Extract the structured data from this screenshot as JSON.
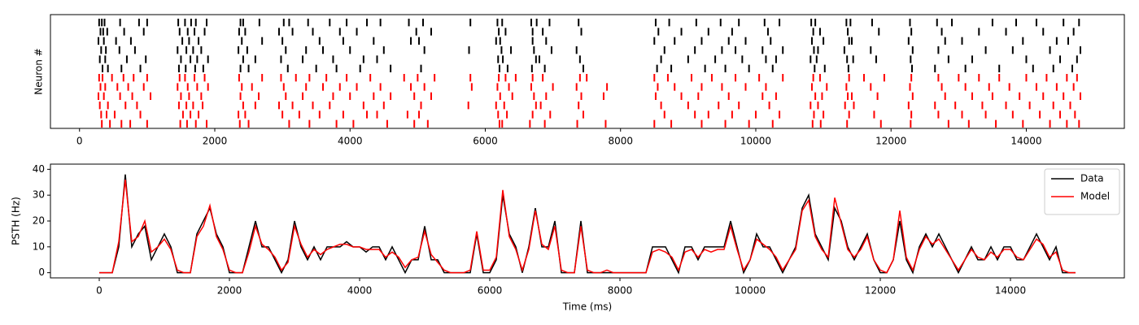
{
  "chart_data": [
    {
      "type": "raster",
      "ylabel": "Neuron #",
      "xlim": [
        -430,
        15450
      ],
      "xticks": [
        0,
        2000,
        4000,
        6000,
        8000,
        10000,
        12000,
        14000
      ],
      "series": [
        {
          "color": "black",
          "neurons": [
            [
              290,
              330,
              370,
              600,
              880,
              1000,
              1460,
              1560,
              1650,
              1720,
              1880,
              2380,
              2420,
              2660,
              3020,
              3100,
              3380,
              3700,
              3950,
              4250,
              4450,
              4870,
              5080,
              5780,
              6180,
              6250,
              6680,
              6760,
              6950,
              7380,
              8520,
              8720,
              9120,
              9480,
              9750,
              10130,
              10350,
              10820,
              10880,
              11340,
              11400,
              11720,
              12280,
              12680,
              12900,
              13500,
              13850,
              14150,
              14550,
              14780
            ],
            [
              310,
              350,
              410,
              660,
              950,
              1480,
              1600,
              1700,
              1850,
              2360,
              2450,
              2950,
              3150,
              3450,
              3850,
              4100,
              4980,
              5200,
              6200,
              6300,
              6700,
              6850,
              7420,
              8560,
              8900,
              9300,
              9650,
              10180,
              10850,
              10950,
              11360,
              11820,
              12300,
              12750,
              13300,
              13700,
              14250,
              14700
            ],
            [
              280,
              360,
              540,
              760,
              1520,
              1620,
              1760,
              2400,
              2700,
              3000,
              3550,
              3900,
              4350,
              4900,
              5020,
              6160,
              6220,
              6700,
              6900,
              8500,
              8800,
              9200,
              9600,
              9850,
              10220,
              10830,
              11000,
              11380,
              11420,
              12260,
              12800,
              13050,
              13950,
              14450,
              14620
            ],
            [
              320,
              390,
              590,
              820,
              1450,
              1580,
              1680,
              1800,
              2350,
              2480,
              3050,
              3350,
              3600,
              4000,
              4500,
              5100,
              5760,
              6240,
              6380,
              6720,
              6980,
              7350,
              8650,
              9100,
              9500,
              9700,
              10100,
              10400,
              10860,
              10920,
              11310,
              11700,
              12320,
              12700,
              13400,
              13800,
              14350,
              14800
            ],
            [
              300,
              380,
              700,
              980,
              1500,
              1640,
              1740,
              1900,
              2420,
              2600,
              2980,
              3300,
              3750,
              4200,
              4400,
              6190,
              6260,
              6750,
              6800,
              7400,
              8600,
              9000,
              9400,
              9800,
              10150,
              10300,
              10810,
              10900,
              11350,
              11440,
              11780,
              12290,
              12850,
              13200,
              14000,
              14500,
              14750
            ],
            [
              340,
              420,
              620,
              900,
              1470,
              1570,
              1710,
              1830,
              2380,
              2500,
              3080,
              3500,
              3800,
              4150,
              4600,
              5050,
              6210,
              6330,
              6690,
              6880,
              7450,
              8540,
              8750,
              9250,
              9550,
              9900,
              10250,
              10870,
              11020,
              11370,
              12310,
              12650,
              13100,
              13600,
              14100,
              14400,
              14680
            ]
          ]
        },
        {
          "color": "red",
          "neurons": [
            [
              290,
              340,
              480,
              650,
              800,
              1000,
              1480,
              1560,
              1700,
              1850,
              2360,
              2700,
              2980,
              3200,
              3400,
              3650,
              3950,
              4300,
              4800,
              5000,
              5250,
              5780,
              6200,
              6300,
              6450,
              6700,
              6850,
              7400,
              7500,
              8500,
              8700,
              9050,
              9350,
              9700,
              10050,
              10400,
              10850,
              10950,
              11380,
              11600,
              11900,
              12300,
              12700,
              13000,
              13300,
              13600,
              14000,
              14300,
              14600,
              14750
            ],
            [
              310,
              380,
              560,
              720,
              950,
              1450,
              1600,
              1740,
              1900,
              2400,
              2550,
              3020,
              3350,
              3600,
              3850,
              4100,
              4450,
              4900,
              5100,
              5800,
              6180,
              6350,
              6680,
              7000,
              7350,
              7800,
              8550,
              8800,
              9200,
              9500,
              9850,
              10150,
              10830,
              11050,
              11340,
              11700,
              12280,
              12750,
              13100,
              13450,
              13750,
              14150,
              14450,
              14700
            ],
            [
              280,
              360,
              600,
              780,
              1050,
              1500,
              1620,
              1800,
              2380,
              2650,
              3050,
              3300,
              3750,
              4000,
              4350,
              4600,
              4950,
              5200,
              6220,
              6400,
              6720,
              6900,
              7420,
              7750,
              8520,
              8900,
              9150,
              9600,
              10100,
              10300,
              10880,
              10980,
              11360,
              11420,
              11800,
              12320,
              12800,
              13200,
              13500,
              13900,
              14250,
              14550,
              14800
            ],
            [
              300,
              420,
              680,
              850,
              1470,
              1580,
              1680,
              1820,
              2420,
              2600,
              2950,
              3150,
              3450,
              3700,
              4200,
              4500,
              5050,
              5750,
              6160,
              6280,
              6750,
              6820,
              7380,
              8600,
              9000,
              9450,
              9750,
              10200,
              10810,
              10920,
              11320,
              11450,
              12260,
              12650,
              12950,
              13350,
              13700,
              14050,
              14400,
              14650
            ],
            [
              320,
              400,
              520,
              900,
              1530,
              1640,
              1760,
              2350,
              2450,
              3000,
              3250,
              3550,
              3900,
              4250,
              4400,
              4850,
              5020,
              6190,
              6320,
              6700,
              6960,
              7450,
              8650,
              9100,
              9300,
              9650,
              10000,
              10350,
              10860,
              11000,
              11380,
              11750,
              12300,
              12700,
              13050,
              13400,
              13800,
              14200,
              14500,
              14720
            ],
            [
              330,
              450,
              620,
              750,
              1000,
              1490,
              1590,
              1720,
              1880,
              2370,
              2500,
              3100,
              3400,
              3800,
              4050,
              4550,
              4950,
              5150,
              6210,
              6250,
              6660,
              6880,
              7360,
              7780,
              8500,
              8750,
              9200,
              9550,
              9900,
              10250,
              10840,
              10960,
              11350,
              11850,
              12290,
              12850,
              13150,
              13550,
              13950,
              14350,
              14600,
              14780
            ]
          ]
        }
      ]
    },
    {
      "type": "line",
      "xlabel": "Time (ms)",
      "ylabel": "PSTH (Hz)",
      "xlim": [
        -750,
        15750
      ],
      "xticks": [
        0,
        2000,
        4000,
        6000,
        8000,
        10000,
        12000,
        14000
      ],
      "ylim": [
        -2,
        42
      ],
      "yticks": [
        0,
        10,
        20,
        30,
        40
      ],
      "legend": "upper right",
      "x": [
        0,
        100,
        200,
        300,
        400,
        500,
        600,
        700,
        800,
        900,
        1000,
        1100,
        1200,
        1300,
        1400,
        1500,
        1600,
        1700,
        1800,
        1900,
        2000,
        2100,
        2200,
        2300,
        2400,
        2500,
        2600,
        2700,
        2800,
        2900,
        3000,
        3100,
        3200,
        3300,
        3400,
        3500,
        3600,
        3700,
        3800,
        3900,
        4000,
        4100,
        4200,
        4300,
        4400,
        4500,
        4600,
        4700,
        4800,
        4900,
        5000,
        5100,
        5200,
        5300,
        5400,
        5500,
        5600,
        5700,
        5800,
        5900,
        6000,
        6100,
        6200,
        6300,
        6400,
        6500,
        6600,
        6700,
        6800,
        6900,
        7000,
        7100,
        7200,
        7300,
        7400,
        7500,
        7600,
        7700,
        7800,
        7900,
        8000,
        8100,
        8200,
        8300,
        8400,
        8500,
        8600,
        8700,
        8800,
        8900,
        9000,
        9100,
        9200,
        9300,
        9400,
        9500,
        9600,
        9700,
        9800,
        9900,
        10000,
        10100,
        10200,
        10300,
        10400,
        10500,
        10600,
        10700,
        10800,
        10900,
        11000,
        11100,
        11200,
        11300,
        11400,
        11500,
        11600,
        11700,
        11800,
        11900,
        12000,
        12100,
        12200,
        12300,
        12400,
        12500,
        12600,
        12700,
        12800,
        12900,
        13000,
        13100,
        13200,
        13300,
        13400,
        13500,
        13600,
        13700,
        13800,
        13900,
        14000,
        14100,
        14200,
        14300,
        14400,
        14500,
        14600,
        14700,
        14800,
        14900,
        15000
      ],
      "series": [
        {
          "name": "Data",
          "color": "black",
          "values": [
            0,
            0,
            0,
            10,
            38,
            10,
            15,
            18,
            5,
            10,
            15,
            10,
            0,
            0,
            0,
            15,
            20,
            25,
            15,
            10,
            0,
            0,
            0,
            10,
            20,
            10,
            10,
            5,
            0,
            5,
            20,
            10,
            5,
            10,
            5,
            10,
            10,
            10,
            12,
            10,
            10,
            8,
            10,
            10,
            5,
            10,
            5,
            0,
            5,
            5,
            18,
            5,
            5,
            0,
            0,
            0,
            0,
            0,
            15,
            0,
            0,
            5,
            30,
            15,
            10,
            0,
            10,
            25,
            10,
            10,
            20,
            0,
            0,
            0,
            20,
            0,
            0,
            0,
            0,
            0,
            0,
            0,
            0,
            0,
            0,
            10,
            10,
            10,
            5,
            0,
            10,
            10,
            5,
            10,
            10,
            10,
            10,
            20,
            10,
            0,
            5,
            15,
            10,
            10,
            5,
            0,
            5,
            10,
            25,
            30,
            15,
            10,
            5,
            25,
            20,
            10,
            5,
            10,
            15,
            5,
            0,
            0,
            5,
            20,
            5,
            0,
            10,
            15,
            10,
            15,
            10,
            5,
            0,
            5,
            10,
            5,
            5,
            10,
            5,
            10,
            10,
            5,
            5,
            10,
            15,
            10,
            5,
            10,
            0,
            0,
            0
          ]
        },
        {
          "name": "Model",
          "color": "red",
          "values": [
            0,
            0,
            0,
            12,
            36,
            12,
            14,
            20,
            8,
            10,
            13,
            9,
            1,
            0,
            0,
            14,
            18,
            26,
            14,
            9,
            1,
            0,
            0,
            8,
            18,
            11,
            9,
            6,
            1,
            4,
            18,
            11,
            6,
            9,
            7,
            9,
            10,
            11,
            11,
            10,
            10,
            9,
            9,
            9,
            6,
            8,
            6,
            2,
            5,
            6,
            16,
            7,
            4,
            1,
            0,
            0,
            0,
            1,
            16,
            1,
            1,
            6,
            32,
            14,
            9,
            1,
            9,
            24,
            11,
            9,
            18,
            1,
            0,
            0,
            18,
            1,
            0,
            0,
            1,
            0,
            0,
            0,
            0,
            0,
            0,
            8,
            9,
            8,
            6,
            1,
            8,
            9,
            6,
            9,
            8,
            9,
            9,
            18,
            9,
            1,
            5,
            13,
            11,
            9,
            6,
            1,
            5,
            9,
            24,
            28,
            14,
            9,
            6,
            29,
            19,
            9,
            6,
            9,
            14,
            5,
            1,
            0,
            5,
            24,
            6,
            1,
            9,
            14,
            11,
            13,
            9,
            5,
            1,
            5,
            9,
            6,
            5,
            8,
            6,
            9,
            9,
            6,
            5,
            9,
            13,
            11,
            6,
            8,
            1,
            0,
            0
          ]
        }
      ]
    }
  ]
}
